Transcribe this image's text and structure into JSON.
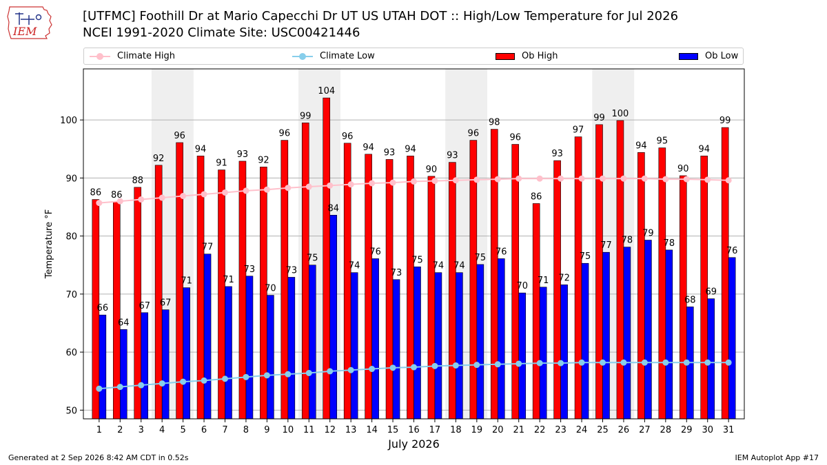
{
  "header": {
    "logo_text": "IEM",
    "title_line1": "[UTFMC] Foothill Dr at Mario Capecchi Dr UT US UTAH DOT :: High/Low Temperature for Jul 2026",
    "title_line2": "NCEI 1991-2020 Climate Site: USC00421446"
  },
  "legend": {
    "items": [
      {
        "label": "Climate High",
        "kind": "line",
        "color": "#ffc0cb"
      },
      {
        "label": "Climate Low",
        "kind": "line",
        "color": "#87ceeb"
      },
      {
        "label": "Ob High",
        "kind": "bar",
        "color": "#ff0000"
      },
      {
        "label": "Ob Low",
        "kind": "bar",
        "color": "#0000ff"
      }
    ]
  },
  "chart_data": {
    "type": "bar",
    "xlabel": "July 2026",
    "ylabel": "Temperature °F",
    "ylim": [
      48.5,
      108.8
    ],
    "yticks": [
      50,
      60,
      70,
      80,
      90,
      100
    ],
    "grid": true,
    "legend_position": "top",
    "weekend_shading_days": [
      [
        4,
        5
      ],
      [
        11,
        12
      ],
      [
        18,
        19
      ],
      [
        25,
        26
      ]
    ],
    "categories": [
      "1",
      "2",
      "3",
      "4",
      "5",
      "6",
      "7",
      "8",
      "9",
      "10",
      "11",
      "12",
      "13",
      "14",
      "15",
      "16",
      "17",
      "18",
      "19",
      "20",
      "21",
      "22",
      "23",
      "24",
      "25",
      "26",
      "27",
      "28",
      "29",
      "30",
      "31"
    ],
    "series": [
      {
        "name": "Ob High",
        "type": "bar",
        "color": "#ff0000",
        "values": [
          86.3,
          85.9,
          88.4,
          92.2,
          96.1,
          93.8,
          91.4,
          92.9,
          91.9,
          96.5,
          99.5,
          103.8,
          96.0,
          94.1,
          93.2,
          93.8,
          90.3,
          92.7,
          96.5,
          98.4,
          95.8,
          85.6,
          93.0,
          97.1,
          99.2,
          99.9,
          94.4,
          95.2,
          90.4,
          93.8,
          98.7
        ],
        "labels": [
          "86",
          "86",
          "88",
          "92",
          "96",
          "94",
          "91",
          "93",
          "92",
          "96",
          "99",
          "104",
          "96",
          "94",
          "93",
          "94",
          "90",
          "93",
          "96",
          "98",
          "96",
          "86",
          "93",
          "97",
          "99",
          "100",
          "94",
          "95",
          "90",
          "94",
          "99"
        ]
      },
      {
        "name": "Ob Low",
        "type": "bar",
        "color": "#0000ff",
        "values": [
          66.4,
          63.9,
          66.8,
          67.3,
          71.1,
          76.9,
          71.3,
          73.1,
          69.8,
          72.9,
          75.0,
          83.6,
          73.7,
          76.1,
          72.5,
          74.7,
          73.7,
          73.7,
          75.1,
          76.1,
          70.2,
          71.2,
          71.6,
          75.3,
          77.2,
          78.1,
          79.3,
          77.6,
          67.8,
          69.2,
          76.3
        ],
        "labels": [
          "66",
          "64",
          "67",
          "67",
          "71",
          "77",
          "71",
          "73",
          "70",
          "73",
          "75",
          "84",
          "74",
          "76",
          "73",
          "75",
          "74",
          "74",
          "75",
          "76",
          "70",
          "71",
          "72",
          "75",
          "77",
          "78",
          "79",
          "78",
          "68",
          "69",
          "76"
        ]
      },
      {
        "name": "Climate High",
        "type": "line",
        "color": "#ffc0cb",
        "values": [
          85.7,
          86.0,
          86.3,
          86.6,
          86.9,
          87.2,
          87.5,
          87.8,
          88.0,
          88.3,
          88.5,
          88.7,
          88.9,
          89.1,
          89.2,
          89.4,
          89.5,
          89.6,
          89.7,
          89.8,
          89.9,
          89.9,
          89.9,
          89.9,
          89.9,
          89.9,
          89.9,
          89.8,
          89.8,
          89.7,
          89.6
        ]
      },
      {
        "name": "Climate Low",
        "type": "line",
        "color": "#87ceeb",
        "values": [
          53.7,
          54.0,
          54.3,
          54.6,
          54.9,
          55.1,
          55.4,
          55.7,
          56.0,
          56.2,
          56.4,
          56.7,
          56.9,
          57.1,
          57.3,
          57.4,
          57.6,
          57.7,
          57.8,
          57.9,
          58.0,
          58.1,
          58.1,
          58.2,
          58.2,
          58.2,
          58.2,
          58.2,
          58.2,
          58.2,
          58.2
        ]
      }
    ]
  },
  "footer": {
    "generated": "Generated at 2 Sep 2026 8:42 AM CDT in 0.52s",
    "app": "IEM Autoplot App #17"
  }
}
